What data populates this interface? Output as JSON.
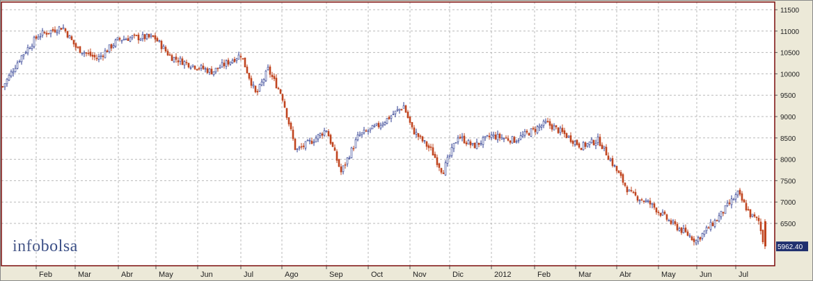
{
  "logo": {
    "part1": "info",
    "part2": "bolsa"
  },
  "last_price_label": "5962.40",
  "colors": {
    "up": "#2b3a8f",
    "down": "#c0441e",
    "grid": "#b8b8b8",
    "frame": "#7a0a0a",
    "bg": "#ffffff",
    "label_bg": "#1f2f6e"
  },
  "chart_data": {
    "type": "candlestick",
    "title": "",
    "xlabel": "",
    "ylabel": "",
    "ylim": [
      5700,
      11600
    ],
    "y_ticks": [
      6500,
      7000,
      7500,
      8000,
      8500,
      9000,
      9500,
      10000,
      10500,
      11000,
      11500
    ],
    "x_month_labels": [
      "Feb",
      "Mar",
      "Abr",
      "May",
      "Jun",
      "Jul",
      "Ago",
      "Sep",
      "Oct",
      "Nov",
      "Dic",
      "2012",
      "Feb",
      "Mar",
      "Abr",
      "May",
      "Jun",
      "Jul"
    ],
    "grid": true,
    "series": [
      {
        "approx_close_path": [
          [
            "Ene 2011",
            9700
          ],
          [
            "Ene 2011 late",
            10400
          ],
          [
            "Feb",
            10900
          ],
          [
            "Feb mid",
            11100
          ],
          [
            "Mar",
            10600
          ],
          [
            "Mar mid",
            10350
          ],
          [
            "Abr",
            10800
          ],
          [
            "Abr mid",
            10850
          ],
          [
            "May",
            10850
          ],
          [
            "May mid",
            10400
          ],
          [
            "Jun",
            10250
          ],
          [
            "Jun mid",
            10050
          ],
          [
            "Jul",
            10450
          ],
          [
            "Jul mid",
            9500
          ],
          [
            "Jul late",
            10100
          ],
          [
            "Ago",
            9500
          ],
          [
            "Ago mid",
            8200
          ],
          [
            "Ago late",
            8450
          ],
          [
            "Sep",
            8700
          ],
          [
            "Sep mid",
            7700
          ],
          [
            "Sep late",
            8550
          ],
          [
            "Oct",
            8800
          ],
          [
            "Oct mid",
            9250
          ],
          [
            "Nov",
            8700
          ],
          [
            "Nov mid",
            8200
          ],
          [
            "Nov late",
            7700
          ],
          [
            "Dic",
            8550
          ],
          [
            "Dic mid",
            8300
          ],
          [
            "2012",
            8550
          ],
          [
            "2012 mid",
            8450
          ],
          [
            "Feb",
            8850
          ],
          [
            "Feb mid",
            8600
          ],
          [
            "Mar",
            8300
          ],
          [
            "Mar mid",
            8450
          ],
          [
            "Abr",
            7900
          ],
          [
            "Abr mid",
            7200
          ],
          [
            "May",
            6950
          ],
          [
            "May mid",
            6500
          ],
          [
            "Jun",
            6100
          ],
          [
            "Jun mid",
            6600
          ],
          [
            "Jul",
            7200
          ],
          [
            "Jul mid",
            6700
          ],
          [
            "Jul late",
            6550
          ],
          [
            "Jul end",
            5962.4
          ]
        ]
      }
    ]
  }
}
